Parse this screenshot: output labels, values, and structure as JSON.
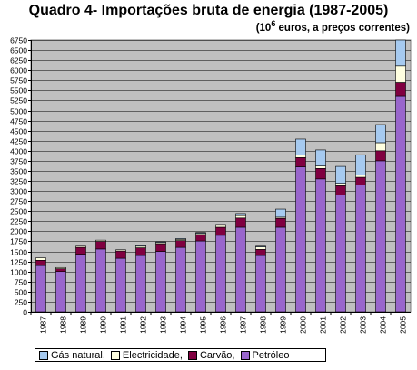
{
  "title_prefix": "Quadro 4- Importações bruta de energia (1987-2005)",
  "subtitle_prefix": "(10",
  "subtitle_exp": "6",
  "subtitle_suffix": " euros, a preços correntes)",
  "colors": {
    "plot_bg": "#c0c0c0",
    "gas": "#a6caf0",
    "electricity": "#ffffe0",
    "coal": "#800040",
    "oil": "#9966cc"
  },
  "chart_data": {
    "type": "bar",
    "stacked": true,
    "title": "Quadro 4- Importações bruta de energia (1987-2005)",
    "ylim": [
      0,
      6750
    ],
    "ytick_step": 250,
    "grid": true,
    "legend_position": "bottom",
    "categories": [
      "1987",
      "1988",
      "1989",
      "1990",
      "1991",
      "1992",
      "1993",
      "1994",
      "1995",
      "1996",
      "1997",
      "1998",
      "1999",
      "2000",
      "2001",
      "2002",
      "2003",
      "2004",
      "2005"
    ],
    "series": [
      {
        "name": "Petróleo",
        "color": "#9966cc",
        "values": [
          1150,
          1000,
          1430,
          1560,
          1330,
          1400,
          1500,
          1600,
          1760,
          1900,
          2100,
          1400,
          2100,
          3600,
          3300,
          2900,
          3150,
          3750,
          5350
        ]
      },
      {
        "name": "Carvão",
        "color": "#800040",
        "values": [
          130,
          70,
          170,
          190,
          180,
          190,
          190,
          170,
          160,
          200,
          230,
          150,
          220,
          230,
          260,
          230,
          190,
          250,
          350
        ]
      },
      {
        "name": "Electricidade",
        "color": "#ffffe0",
        "values": [
          60,
          30,
          30,
          30,
          30,
          40,
          30,
          30,
          30,
          50,
          60,
          60,
          30,
          60,
          60,
          60,
          60,
          200,
          400
        ]
      },
      {
        "name": "Gás natural",
        "color": "#a6caf0",
        "values": [
          0,
          0,
          0,
          0,
          0,
          20,
          20,
          20,
          20,
          20,
          50,
          20,
          200,
          400,
          400,
          420,
          500,
          450,
          650
        ]
      }
    ]
  },
  "legend": [
    {
      "label": "Gás natural,",
      "color": "#a6caf0"
    },
    {
      "label": "Electricidade,",
      "color": "#ffffe0"
    },
    {
      "label": "Carvão,",
      "color": "#800040"
    },
    {
      "label": "Petróleo",
      "color": "#9966cc"
    }
  ]
}
